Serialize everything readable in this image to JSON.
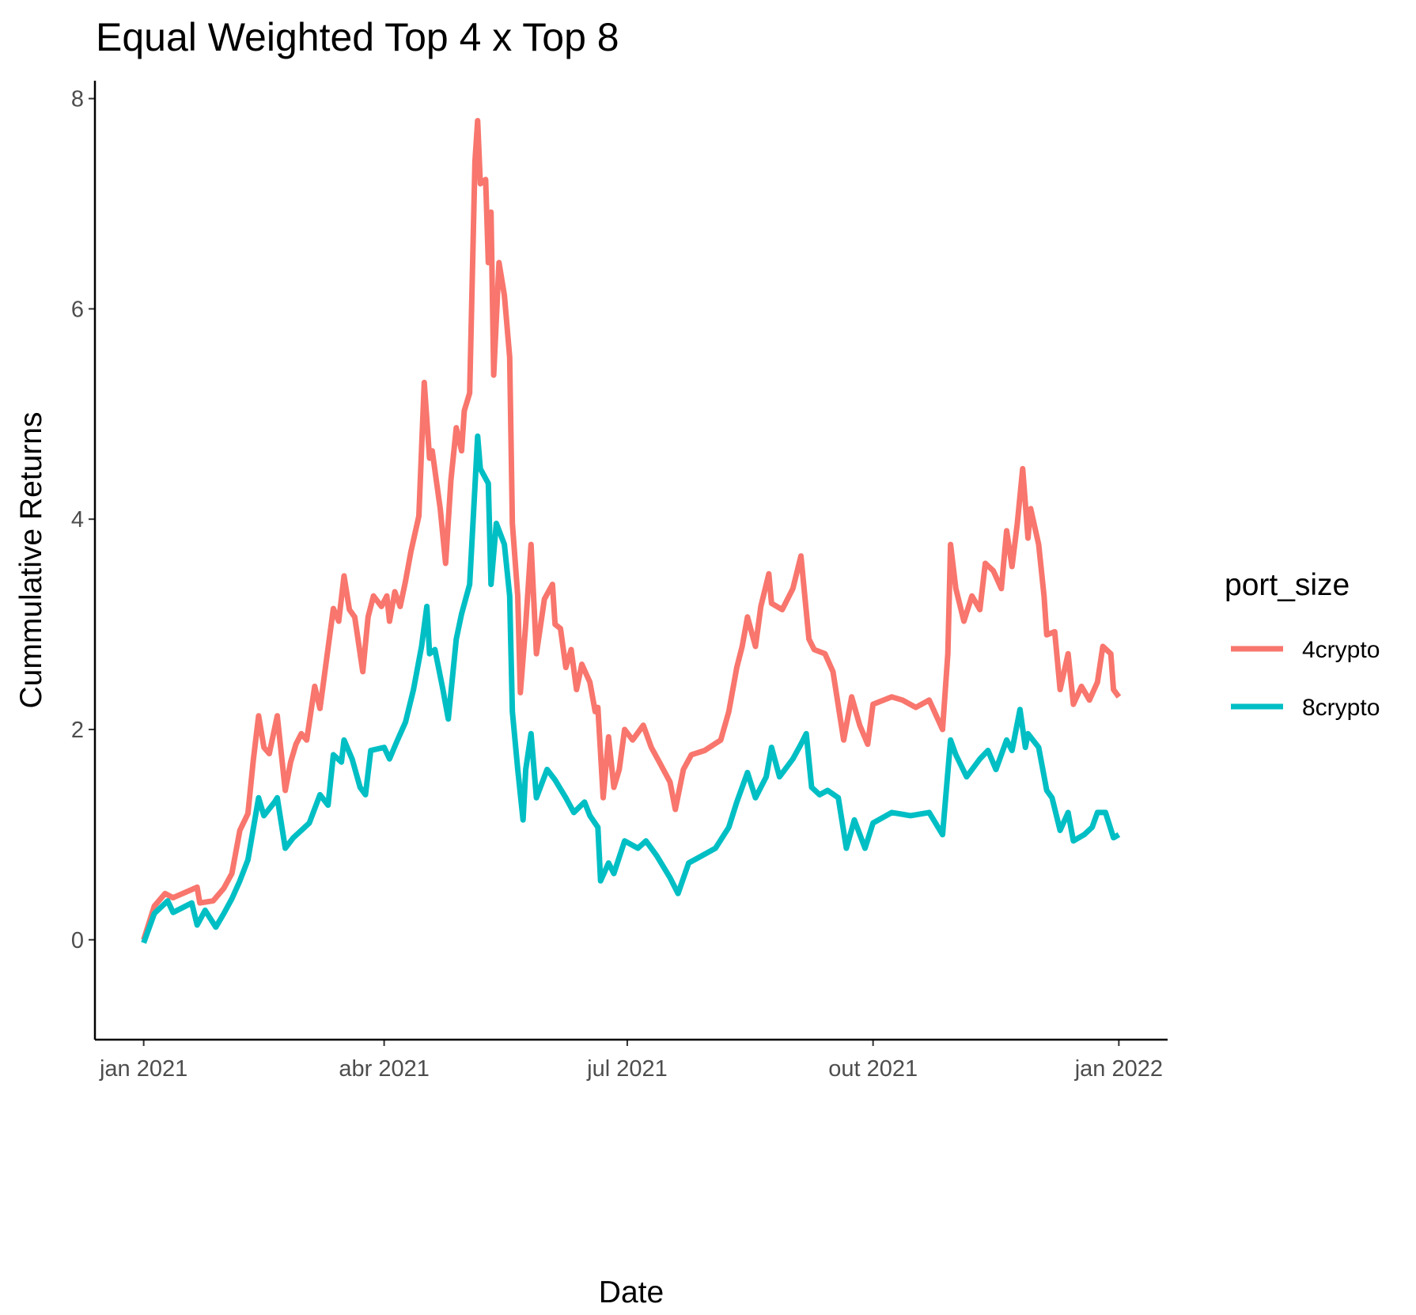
{
  "chart_data": {
    "type": "line",
    "title": "Equal Weighted Top 4 x Top 8",
    "x_label": "Date",
    "y_label": "Cummulative Returns",
    "legend_title": "port_size",
    "legend": "right",
    "xlim": [
      -18.25,
      383.25
    ],
    "ylim": [
      -0.95,
      8.17
    ],
    "xticks": [
      {
        "value": 0,
        "label": "jan 2021"
      },
      {
        "value": 90,
        "label": "abr 2021"
      },
      {
        "value": 181,
        "label": "jul 2021"
      },
      {
        "value": 273,
        "label": "out 2021"
      },
      {
        "value": 365,
        "label": "jan 2022"
      }
    ],
    "yticks": [
      0,
      2,
      4,
      6,
      8
    ],
    "series": [
      {
        "name": "4crypto",
        "color": "#F8766D",
        "x": [
          0,
          4,
          8,
          11,
          20,
          21,
          26,
          30,
          33,
          36,
          39,
          41,
          43,
          45,
          47,
          50,
          53,
          55,
          57,
          59,
          61,
          64,
          66,
          71,
          73,
          75,
          77,
          79,
          82,
          84,
          86,
          89,
          91,
          92,
          94,
          96,
          98,
          100,
          103,
          105,
          107,
          108,
          111,
          113,
          115,
          117,
          119,
          120,
          122,
          124,
          125,
          126,
          128,
          129,
          130,
          131,
          133,
          135,
          137,
          138,
          140,
          141,
          143,
          145,
          147,
          150,
          153,
          154,
          156,
          158,
          160,
          162,
          164,
          167,
          169,
          170,
          172,
          174,
          176,
          178,
          180,
          183,
          187,
          190,
          193,
          197,
          199,
          202,
          205,
          210,
          216,
          219,
          222,
          224,
          226,
          229,
          231,
          234,
          235,
          239,
          243,
          246,
          249,
          251,
          255,
          258,
          262,
          265,
          268,
          271,
          273,
          280,
          284,
          289,
          294,
          299,
          301,
          302,
          304,
          307,
          310,
          313,
          315,
          318,
          321,
          323,
          325,
          327,
          329,
          331,
          332,
          335,
          337,
          338,
          341,
          343,
          346,
          348,
          351,
          354,
          357,
          359,
          362,
          363,
          365
        ],
        "values": [
          0,
          0.32,
          0.44,
          0.4,
          0.5,
          0.35,
          0.37,
          0.49,
          0.63,
          1.04,
          1.2,
          1.7,
          2.13,
          1.83,
          1.77,
          2.13,
          1.42,
          1.69,
          1.86,
          1.96,
          1.9,
          2.41,
          2.2,
          3.15,
          3.03,
          3.46,
          3.14,
          3.07,
          2.55,
          3.07,
          3.27,
          3.17,
          3.27,
          3.03,
          3.31,
          3.17,
          3.41,
          3.69,
          4.03,
          5.3,
          4.58,
          4.65,
          4.1,
          3.58,
          4.37,
          4.87,
          4.65,
          5.03,
          5.2,
          7.4,
          7.79,
          7.19,
          7.23,
          6.44,
          6.92,
          5.37,
          6.44,
          6.13,
          5.54,
          3.96,
          3.27,
          2.35,
          3.0,
          3.76,
          2.72,
          3.24,
          3.38,
          3.0,
          2.96,
          2.59,
          2.76,
          2.38,
          2.62,
          2.45,
          2.17,
          2.21,
          1.35,
          1.93,
          1.45,
          1.62,
          2.0,
          1.9,
          2.04,
          1.83,
          1.69,
          1.5,
          1.24,
          1.62,
          1.76,
          1.8,
          1.9,
          2.17,
          2.59,
          2.79,
          3.07,
          2.79,
          3.17,
          3.48,
          3.2,
          3.14,
          3.34,
          3.65,
          2.86,
          2.76,
          2.72,
          2.55,
          1.9,
          2.31,
          2.04,
          1.86,
          2.24,
          2.31,
          2.28,
          2.21,
          2.28,
          2.0,
          2.72,
          3.76,
          3.34,
          3.03,
          3.27,
          3.14,
          3.58,
          3.51,
          3.34,
          3.89,
          3.55,
          3.96,
          4.48,
          3.82,
          4.1,
          3.76,
          3.27,
          2.9,
          2.93,
          2.38,
          2.72,
          2.24,
          2.41,
          2.28,
          2.45,
          2.79,
          2.72,
          2.38,
          2.31
        ]
      },
      {
        "name": "8crypto",
        "color": "#00BFC4",
        "x": [
          0,
          4,
          9,
          11,
          18,
          20,
          23,
          27,
          30,
          33,
          36,
          39,
          43,
          45,
          49,
          50,
          53,
          56,
          59,
          62,
          66,
          69,
          71,
          74,
          75,
          78,
          81,
          83,
          85,
          90,
          92,
          95,
          98,
          101,
          104,
          106,
          107,
          109,
          112,
          114,
          117,
          119,
          122,
          124,
          125,
          126,
          129,
          130,
          132,
          135,
          137,
          138,
          140,
          142,
          143,
          145,
          147,
          151,
          154,
          158,
          161,
          165,
          167,
          170,
          171,
          174,
          176,
          180,
          185,
          188,
          192,
          197,
          200,
          204,
          209,
          214,
          219,
          222,
          226,
          229,
          233,
          235,
          238,
          243,
          246,
          248,
          250,
          253,
          256,
          260,
          263,
          266,
          270,
          273,
          280,
          287,
          294,
          299,
          302,
          304,
          308,
          313,
          316,
          319,
          323,
          325,
          328,
          330,
          331,
          335,
          338,
          340,
          343,
          346,
          348,
          352,
          355,
          357,
          360,
          363,
          365
        ],
        "values": [
          -0.03,
          0.25,
          0.37,
          0.26,
          0.35,
          0.14,
          0.28,
          0.12,
          0.25,
          0.39,
          0.56,
          0.76,
          1.35,
          1.18,
          1.31,
          1.35,
          0.87,
          0.97,
          1.04,
          1.11,
          1.38,
          1.28,
          1.76,
          1.69,
          1.9,
          1.72,
          1.45,
          1.38,
          1.8,
          1.83,
          1.72,
          1.9,
          2.07,
          2.38,
          2.79,
          3.17,
          2.72,
          2.76,
          2.38,
          2.1,
          2.86,
          3.1,
          3.38,
          4.31,
          4.79,
          4.48,
          4.34,
          3.38,
          3.96,
          3.76,
          3.27,
          2.17,
          1.62,
          1.14,
          1.62,
          1.96,
          1.35,
          1.62,
          1.52,
          1.35,
          1.21,
          1.31,
          1.18,
          1.07,
          0.56,
          0.73,
          0.63,
          0.94,
          0.87,
          0.94,
          0.8,
          0.59,
          0.44,
          0.73,
          0.8,
          0.87,
          1.07,
          1.31,
          1.59,
          1.35,
          1.55,
          1.83,
          1.55,
          1.72,
          1.86,
          1.96,
          1.45,
          1.38,
          1.42,
          1.35,
          0.87,
          1.14,
          0.87,
          1.11,
          1.21,
          1.18,
          1.21,
          1.0,
          1.9,
          1.76,
          1.55,
          1.72,
          1.8,
          1.62,
          1.9,
          1.8,
          2.19,
          1.83,
          1.96,
          1.83,
          1.42,
          1.35,
          1.04,
          1.21,
          0.94,
          1.0,
          1.07,
          1.21,
          1.21,
          0.97,
          1.0
        ]
      }
    ]
  }
}
